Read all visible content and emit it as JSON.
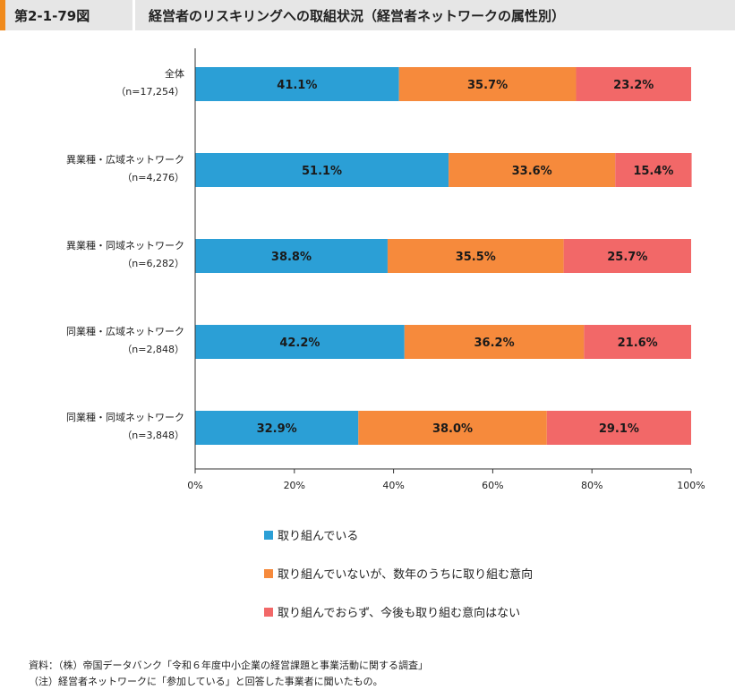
{
  "header": {
    "figure_number": "第2-1-79図",
    "title": "経営者のリスキリングへの取組状況（経営者ネットワークの属性別）"
  },
  "colors": {
    "series_1": "#2b9fd6",
    "series_2": "#f68a3c",
    "series_3": "#f26868"
  },
  "chart_data": {
    "type": "bar",
    "orientation": "horizontal",
    "stacked": true,
    "categories": [
      {
        "label": "全体",
        "n": "（n=17,254）"
      },
      {
        "label": "異業種・広域ネットワーク",
        "n": "（n=4,276）"
      },
      {
        "label": "異業種・同域ネットワーク",
        "n": "（n=6,282）"
      },
      {
        "label": "同業種・広域ネットワーク",
        "n": "（n=2,848）"
      },
      {
        "label": "同業種・同域ネットワーク",
        "n": "（n=3,848）"
      }
    ],
    "series": [
      {
        "name": "取り組んでいる",
        "values": [
          41.1,
          51.1,
          38.8,
          42.2,
          32.9
        ]
      },
      {
        "name": "取り組んでいないが、数年のうちに取り組む意向",
        "values": [
          35.7,
          33.6,
          35.5,
          36.2,
          38.0
        ]
      },
      {
        "name": "取り組んでおらず、今後も取り組む意向はない",
        "values": [
          23.2,
          15.4,
          25.7,
          21.6,
          29.1
        ]
      }
    ],
    "xlim": [
      0,
      100
    ],
    "x_ticks": [
      "0%",
      "20%",
      "40%",
      "60%",
      "80%",
      "100%"
    ],
    "grid": false,
    "legend_position": "bottom"
  },
  "notes": {
    "source": "資料：（株）帝国データバンク「令和６年度中小企業の経営課題と事業活動に関する調査」",
    "note": "（注）経営者ネットワークに「参加している」と回答した事業者に聞いたもの。"
  }
}
